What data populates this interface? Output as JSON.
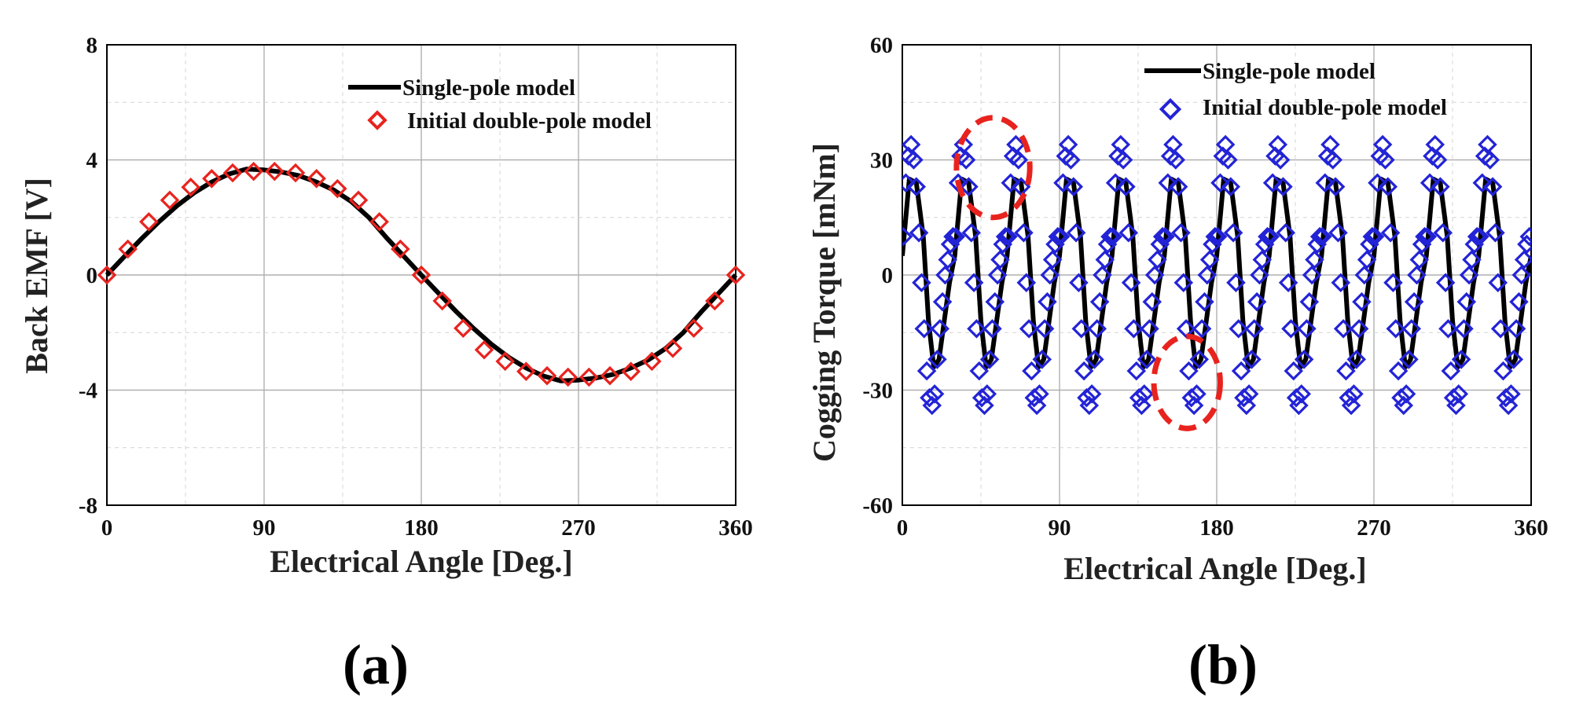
{
  "chart_data": [
    {
      "id": "a",
      "type": "line",
      "caption": "(a)",
      "xlabel": "Electrical Angle [Deg.]",
      "ylabel": "Back EMF [V]",
      "xlim": [
        0,
        360
      ],
      "ylim": [
        -8,
        8
      ],
      "xticks": [
        "0",
        "90",
        "180",
        "270",
        "360"
      ],
      "yticks": [
        "8",
        "4",
        "0",
        "-4",
        "-8"
      ],
      "grid": true,
      "legend": "top-right",
      "series": [
        {
          "name": "Single-pole model",
          "style": "line",
          "color": "#000000",
          "x": [
            0,
            10,
            20,
            30,
            40,
            50,
            60,
            70,
            80,
            90,
            100,
            110,
            120,
            130,
            140,
            150,
            160,
            170,
            180,
            190,
            200,
            210,
            220,
            230,
            240,
            250,
            260,
            270,
            280,
            290,
            300,
            310,
            320,
            330,
            340,
            350,
            360
          ],
          "y": [
            0,
            0.64,
            1.27,
            1.86,
            2.4,
            2.86,
            3.23,
            3.51,
            3.68,
            3.65,
            3.58,
            3.45,
            3.23,
            2.95,
            2.55,
            2.0,
            1.3,
            0.65,
            0,
            -0.64,
            -1.27,
            -1.86,
            -2.4,
            -2.86,
            -3.23,
            -3.51,
            -3.68,
            -3.65,
            -3.58,
            -3.45,
            -3.23,
            -2.95,
            -2.55,
            -2.0,
            -1.3,
            -0.65,
            0
          ]
        },
        {
          "name": "Initial double-pole model",
          "style": "marker-diamond",
          "color": "#e8231e",
          "x": [
            0,
            12,
            24,
            36,
            48,
            60,
            72,
            84,
            96,
            108,
            120,
            132,
            144,
            156,
            168,
            180,
            192,
            204,
            216,
            228,
            240,
            252,
            264,
            276,
            288,
            300,
            312,
            324,
            336,
            348,
            360
          ],
          "y": [
            0,
            0.9,
            1.85,
            2.6,
            3.05,
            3.35,
            3.55,
            3.6,
            3.6,
            3.55,
            3.35,
            3.0,
            2.6,
            1.85,
            0.9,
            0,
            -0.9,
            -1.85,
            -2.6,
            -3.0,
            -3.35,
            -3.5,
            -3.55,
            -3.55,
            -3.5,
            -3.35,
            -3.0,
            -2.55,
            -1.85,
            -0.9,
            0
          ]
        }
      ]
    },
    {
      "id": "b",
      "type": "line",
      "caption": "(b)",
      "xlabel": "Electrical Angle [Deg.]",
      "ylabel": "Cogging Torque [mNm]",
      "xlim": [
        0,
        360
      ],
      "ylim": [
        -60,
        60
      ],
      "xticks": [
        "0",
        "90",
        "180",
        "270",
        "360"
      ],
      "yticks": [
        "60",
        "30",
        "0",
        "-30",
        "-60"
      ],
      "grid": true,
      "legend": "top-right",
      "period": 30,
      "annotations": [
        {
          "shape": "dashed-ellipse",
          "color": "#e8231e",
          "cx_deg": 52,
          "cy_val": 28,
          "rx_deg": 21,
          "ry_val": 13
        },
        {
          "shape": "dashed-ellipse",
          "color": "#e8231e",
          "cx_deg": 163,
          "cy_val": -28,
          "rx_deg": 19,
          "ry_val": 12
        }
      ],
      "series": [
        {
          "name": "Single-pole model",
          "style": "line",
          "color": "#000000",
          "cycle_x": [
            0,
            4,
            8,
            12,
            15,
            18,
            21,
            24,
            27,
            30
          ],
          "cycle_y": [
            5,
            25,
            24,
            10,
            -12,
            -24,
            -22,
            -12,
            -2,
            5
          ]
        },
        {
          "name": "Initial double-pole model",
          "style": "marker-diamond",
          "color": "#2323d6",
          "cycle_x": [
            0.5,
            2,
            3.5,
            5,
            6.5,
            8,
            9.5,
            11,
            12.5,
            14,
            15.5,
            17,
            18.5,
            20,
            21.5,
            23,
            24.5,
            26,
            27.5,
            29
          ],
          "cycle_y": [
            10,
            24,
            31,
            34,
            30,
            23,
            11,
            -2,
            -14,
            -25,
            -32,
            -34,
            -31,
            -22,
            -14,
            -7,
            0,
            4,
            8,
            10
          ]
        }
      ]
    }
  ]
}
